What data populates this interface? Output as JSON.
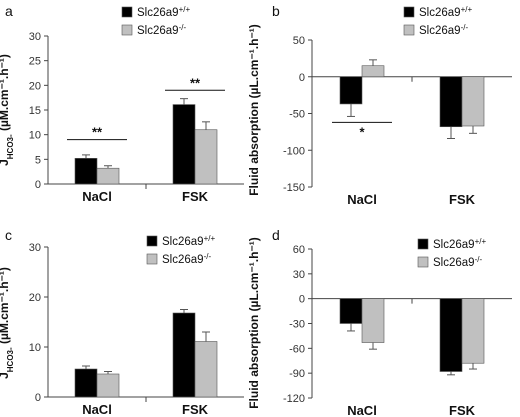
{
  "chart_data": [
    {
      "type": "bar",
      "panel_label": "a",
      "ylabel_main": "J",
      "ylabel_sub": "HCO3-",
      "ylabel_unit": " (µM.cm⁻¹.h⁻¹)",
      "ylim": [
        0,
        30
      ],
      "yticks": [
        "0",
        "5",
        "10",
        "15",
        "20",
        "25",
        "30"
      ],
      "categories": [
        "NaCl",
        "FSK"
      ],
      "series": [
        {
          "name": "Slc26a9+/+",
          "values": [
            5.2,
            16.1
          ],
          "errors": [
            0.7,
            1.2
          ],
          "color": "#000000"
        },
        {
          "name": "Slc26a9-/-",
          "values": [
            3.2,
            11.0
          ],
          "errors": [
            0.5,
            1.6
          ],
          "color": "#c0c0c0"
        }
      ],
      "significance": [
        {
          "category": 0,
          "label": "**",
          "at": 9.0
        },
        {
          "category": 1,
          "label": "**",
          "at": 19.0
        }
      ]
    },
    {
      "type": "bar",
      "panel_label": "b",
      "ylabel_main": "Fluid absorption (µL.cm⁻¹.h⁻¹)",
      "ylim": [
        -150,
        50
      ],
      "yticks": [
        "-150",
        "-100",
        "-50",
        "0",
        "50"
      ],
      "categories": [
        "NaCl",
        "FSK"
      ],
      "series": [
        {
          "name": "Slc26a9+/+",
          "values": [
            -37,
            -68
          ],
          "errors": [
            17,
            16
          ],
          "color": "#000000"
        },
        {
          "name": "Slc26a9-/-",
          "values": [
            15,
            -67
          ],
          "errors": [
            8,
            10
          ],
          "color": "#c0c0c0"
        }
      ],
      "significance": [
        {
          "category": 0,
          "label": "*",
          "at": -62
        }
      ]
    },
    {
      "type": "bar",
      "panel_label": "c",
      "ylabel_main": "J",
      "ylabel_sub": "HCO3-",
      "ylabel_unit": " (µM.cm⁻¹.h⁻¹)",
      "ylim": [
        0,
        30
      ],
      "yticks": [
        "0",
        "10",
        "20",
        "30"
      ],
      "categories": [
        "NaCl",
        "FSK"
      ],
      "series": [
        {
          "name": "Slc26a9+/+",
          "values": [
            5.6,
            16.8
          ],
          "errors": [
            0.6,
            0.7
          ],
          "color": "#000000"
        },
        {
          "name": "Slc26a9-/-",
          "values": [
            4.6,
            11.1
          ],
          "errors": [
            0.5,
            1.9
          ],
          "color": "#c0c0c0"
        }
      ],
      "significance": []
    },
    {
      "type": "bar",
      "panel_label": "d",
      "ylabel_main": "Fluid absorption (µL.cm⁻¹.h⁻¹)",
      "ylim": [
        -120,
        60
      ],
      "yticks": [
        "-120",
        "-90",
        "-60",
        "-30",
        "0",
        "30",
        "60"
      ],
      "categories": [
        "NaCl",
        "FSK"
      ],
      "series": [
        {
          "name": "Slc26a9+/+",
          "values": [
            -30,
            -88
          ],
          "errors": [
            9,
            4
          ],
          "color": "#000000"
        },
        {
          "name": "Slc26a9-/-",
          "values": [
            -53,
            -78
          ],
          "errors": [
            8,
            7
          ],
          "color": "#c0c0c0"
        }
      ],
      "significance": []
    }
  ]
}
